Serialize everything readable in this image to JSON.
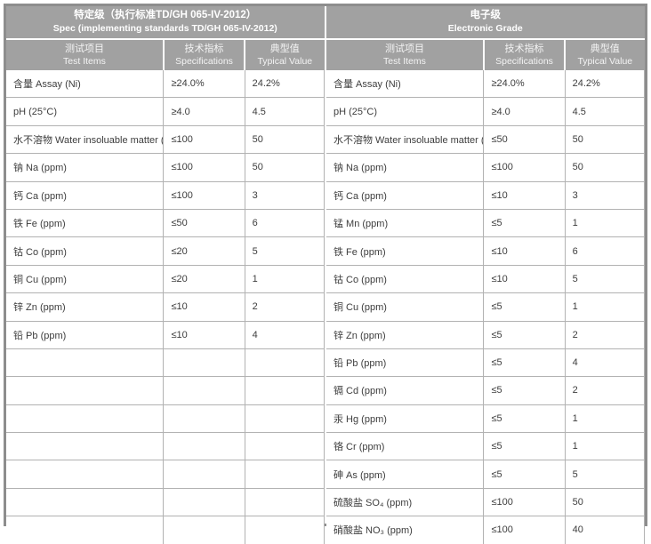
{
  "tables": [
    {
      "id": "spec-grade",
      "title_cn": "特定级（执行标准TD/GH 065-IV-2012）",
      "title_en": "Spec (implementing standards TD/GH 065-IV-2012)",
      "columns": [
        {
          "cn": "测试项目",
          "en": "Test Items"
        },
        {
          "cn": "技术指标",
          "en": "Specifications"
        },
        {
          "cn": "典型值",
          "en": "Typical Value"
        }
      ],
      "rows": [
        [
          "含量 Assay (Ni)",
          "≥24.0%",
          "24.2%"
        ],
        [
          "pH (25°C)",
          "≥4.0",
          "4.5"
        ],
        [
          "水不溶物 Water insoluable matter (ppm)",
          "≤100",
          "50"
        ],
        [
          "钠 Na (ppm)",
          "≤100",
          "50"
        ],
        [
          "钙 Ca (ppm)",
          "≤100",
          "3"
        ],
        [
          "铁 Fe (ppm)",
          "≤50",
          "6"
        ],
        [
          "钴 Co (ppm)",
          "≤20",
          "5"
        ],
        [
          "铜 Cu (ppm)",
          "≤20",
          "1"
        ],
        [
          "锌 Zn (ppm)",
          "≤10",
          "2"
        ],
        [
          "铅 Pb (ppm)",
          "≤10",
          "4"
        ],
        [
          "",
          "",
          ""
        ],
        [
          "",
          "",
          ""
        ],
        [
          "",
          "",
          ""
        ],
        [
          "",
          "",
          ""
        ],
        [
          "",
          "",
          ""
        ],
        [
          "",
          "",
          ""
        ],
        [
          "",
          "",
          ""
        ]
      ]
    },
    {
      "id": "electronic-grade",
      "title_cn": "电子级",
      "title_en": "Electronic Grade",
      "columns": [
        {
          "cn": "测试项目",
          "en": "Test Items"
        },
        {
          "cn": "技术指标",
          "en": "Specifications"
        },
        {
          "cn": "典型值",
          "en": "Typical Value"
        }
      ],
      "rows": [
        [
          "含量 Assay (Ni)",
          "≥24.0%",
          "24.2%"
        ],
        [
          "pH (25°C)",
          "≥4.0",
          "4.5"
        ],
        [
          "水不溶物 Water insoluable matter (ppm)",
          "≤50",
          "50"
        ],
        [
          "钠 Na (ppm)",
          "≤100",
          "50"
        ],
        [
          "钙 Ca (ppm)",
          "≤10",
          "3"
        ],
        [
          "锰 Mn (ppm)",
          "≤5",
          "1"
        ],
        [
          "铁 Fe (ppm)",
          "≤10",
          "6"
        ],
        [
          "钴 Co (ppm)",
          "≤10",
          "5"
        ],
        [
          "铜 Cu (ppm)",
          "≤5",
          "1"
        ],
        [
          "锌 Zn (ppm)",
          "≤5",
          "2"
        ],
        [
          "铅 Pb (ppm)",
          "≤5",
          "4"
        ],
        [
          "镉 Cd (ppm)",
          "≤5",
          "2"
        ],
        [
          "汞 Hg (ppm)",
          "≤5",
          "1"
        ],
        [
          "铬 Cr (ppm)",
          "≤5",
          "1"
        ],
        [
          "砷 As (ppm)",
          "≤5",
          "5"
        ],
        [
          "硫酸盐 SO₄ (ppm)",
          "≤100",
          "50"
        ],
        [
          "硝酸盐 NO₃ (ppm)",
          "≤100",
          "40"
        ]
      ]
    }
  ],
  "colors": {
    "header_bg": "#a1a1a1",
    "outer_border": "#8d8d8d",
    "cell_border": "#b2b2b2",
    "body_text": "#3d3d3d",
    "header_text": "#ffffff"
  }
}
